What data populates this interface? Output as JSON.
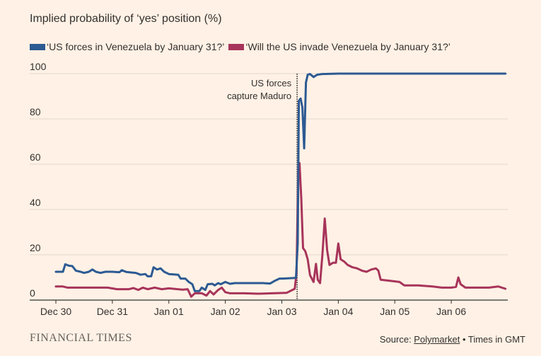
{
  "chart_data": {
    "type": "line",
    "title": "Implied probability of ‘yes’ position (%)",
    "ylim": [
      0,
      100
    ],
    "yticks": [
      0,
      20,
      40,
      60,
      80,
      100
    ],
    "xlim": [
      "2025-12-30T00:00",
      "2026-01-07T00:00"
    ],
    "xticks": [
      {
        "label": "Dec 30",
        "t": "2025-12-30T00:00"
      },
      {
        "label": "Dec 31",
        "t": "2025-12-31T00:00"
      },
      {
        "label": "Jan 01",
        "t": "2026-01-01T00:00"
      },
      {
        "label": "Jan 02",
        "t": "2026-01-02T00:00"
      },
      {
        "label": "Jan 03",
        "t": "2026-01-03T00:00"
      },
      {
        "label": "Jan 04",
        "t": "2026-01-04T00:00"
      },
      {
        "label": "Jan 05",
        "t": "2026-01-05T00:00"
      },
      {
        "label": "Jan 06",
        "t": "2026-01-06T00:00"
      }
    ],
    "grid": true,
    "legend_position": "top-left",
    "annotation": {
      "lines": [
        "US forces",
        "capture Maduro"
      ],
      "t": "2026-01-03T06:30"
    },
    "series": [
      {
        "name": "‘US forces in Venezuela by January 31?’",
        "color": "#2c5a93",
        "points": [
          [
            "2025-12-30T00:00",
            12.5
          ],
          [
            "2025-12-30T03:00",
            12.5
          ],
          [
            "2025-12-30T04:00",
            15.8
          ],
          [
            "2025-12-30T05:30",
            15.2
          ],
          [
            "2025-12-30T07:00",
            15
          ],
          [
            "2025-12-30T08:30",
            13
          ],
          [
            "2025-12-30T10:30",
            12.5
          ],
          [
            "2025-12-30T12:00",
            12
          ],
          [
            "2025-12-30T14:00",
            12.5
          ],
          [
            "2025-12-30T15:30",
            13.5
          ],
          [
            "2025-12-30T17:00",
            12.5
          ],
          [
            "2025-12-30T19:00",
            12
          ],
          [
            "2025-12-30T21:00",
            12.5
          ],
          [
            "2025-12-31T00:00",
            12.5
          ],
          [
            "2025-12-31T03:00",
            12.3
          ],
          [
            "2025-12-31T04:00",
            13.2
          ],
          [
            "2025-12-31T06:00",
            12.4
          ],
          [
            "2025-12-31T08:00",
            12.2
          ],
          [
            "2025-12-31T10:00",
            12
          ],
          [
            "2025-12-31T12:00",
            11.2
          ],
          [
            "2025-12-31T14:00",
            11.5
          ],
          [
            "2025-12-31T15:00",
            10.5
          ],
          [
            "2025-12-31T16:30",
            10.5
          ],
          [
            "2025-12-31T17:30",
            14.5
          ],
          [
            "2025-12-31T19:00",
            13.5
          ],
          [
            "2025-12-31T20:30",
            14
          ],
          [
            "2025-12-31T22:00",
            12.5
          ],
          [
            "2026-01-01T00:00",
            11.5
          ],
          [
            "2026-01-01T04:00",
            11.2
          ],
          [
            "2026-01-01T05:00",
            9.5
          ],
          [
            "2026-01-01T07:00",
            9.5
          ],
          [
            "2026-01-01T08:30",
            8
          ],
          [
            "2026-01-01T10:00",
            7
          ],
          [
            "2026-01-01T11:00",
            4
          ],
          [
            "2026-01-01T13:00",
            4
          ],
          [
            "2026-01-01T14:00",
            5.5
          ],
          [
            "2026-01-01T15:30",
            4.5
          ],
          [
            "2026-01-01T16:30",
            7
          ],
          [
            "2026-01-01T18:30",
            7.2
          ],
          [
            "2026-01-01T19:30",
            6.5
          ],
          [
            "2026-01-01T21:00",
            7.5
          ],
          [
            "2026-01-01T22:00",
            7
          ],
          [
            "2026-01-02T00:00",
            8
          ],
          [
            "2026-01-02T02:00",
            7.2
          ],
          [
            "2026-01-02T04:00",
            7.5
          ],
          [
            "2026-01-02T08:00",
            7.5
          ],
          [
            "2026-01-02T16:00",
            7.5
          ],
          [
            "2026-01-02T19:00",
            7.3
          ],
          [
            "2026-01-02T21:00",
            8.5
          ],
          [
            "2026-01-02T23:00",
            9.5
          ],
          [
            "2026-01-03T00:30",
            9.5
          ],
          [
            "2026-01-03T06:00",
            9.8
          ],
          [
            "2026-01-03T06:45",
            25
          ],
          [
            "2026-01-03T07:15",
            88
          ],
          [
            "2026-01-03T08:00",
            89
          ],
          [
            "2026-01-03T08:45",
            85
          ],
          [
            "2026-01-03T09:30",
            67
          ],
          [
            "2026-01-03T10:15",
            96
          ],
          [
            "2026-01-03T11:00",
            99.5
          ],
          [
            "2026-01-03T12:00",
            99.8
          ],
          [
            "2026-01-03T13:30",
            98.5
          ],
          [
            "2026-01-03T15:00",
            99.5
          ],
          [
            "2026-01-03T17:00",
            99.8
          ],
          [
            "2026-01-04T00:00",
            100
          ],
          [
            "2026-01-05T00:00",
            100
          ],
          [
            "2026-01-06T00:00",
            100
          ],
          [
            "2026-01-06T23:00",
            100
          ]
        ]
      },
      {
        "name": "‘Will the US invade Venezuela by January 31?’",
        "color": "#a7345a",
        "points": [
          [
            "2025-12-30T00:00",
            6
          ],
          [
            "2025-12-30T03:00",
            6
          ],
          [
            "2025-12-30T05:00",
            5.5
          ],
          [
            "2025-12-30T12:00",
            5.5
          ],
          [
            "2025-12-30T22:00",
            5.5
          ],
          [
            "2025-12-31T02:00",
            4.8
          ],
          [
            "2025-12-31T07:00",
            4.8
          ],
          [
            "2025-12-31T09:00",
            5.3
          ],
          [
            "2025-12-31T11:00",
            4.5
          ],
          [
            "2025-12-31T13:00",
            5.5
          ],
          [
            "2025-12-31T15:00",
            4.8
          ],
          [
            "2025-12-31T18:00",
            5.5
          ],
          [
            "2025-12-31T21:00",
            4.8
          ],
          [
            "2026-01-01T00:00",
            5.2
          ],
          [
            "2026-01-01T06:00",
            4.6
          ],
          [
            "2026-01-01T08:00",
            4.8
          ],
          [
            "2026-01-01T09:30",
            1.5
          ],
          [
            "2026-01-01T11:00",
            3
          ],
          [
            "2026-01-01T14:00",
            3
          ],
          [
            "2026-01-01T16:00",
            2
          ],
          [
            "2026-01-01T17:30",
            4
          ],
          [
            "2026-01-01T19:00",
            2.5
          ],
          [
            "2026-01-01T21:00",
            4.5
          ],
          [
            "2026-01-01T22:30",
            5.5
          ],
          [
            "2026-01-02T00:00",
            3.5
          ],
          [
            "2026-01-02T02:00",
            3
          ],
          [
            "2026-01-02T08:00",
            3
          ],
          [
            "2026-01-02T14:00",
            2.8
          ],
          [
            "2026-01-02T20:00",
            3
          ],
          [
            "2026-01-03T02:00",
            3.2
          ],
          [
            "2026-01-03T05:30",
            5
          ],
          [
            "2026-01-03T06:15",
            12
          ],
          [
            "2026-01-03T07:00",
            58
          ],
          [
            "2026-01-03T07:30",
            60.5
          ],
          [
            "2026-01-03T08:15",
            45
          ],
          [
            "2026-01-03T09:00",
            23
          ],
          [
            "2026-01-03T10:00",
            21.5
          ],
          [
            "2026-01-03T11:00",
            18
          ],
          [
            "2026-01-03T12:00",
            11
          ],
          [
            "2026-01-03T13:30",
            8
          ],
          [
            "2026-01-03T14:30",
            16
          ],
          [
            "2026-01-03T15:15",
            9
          ],
          [
            "2026-01-03T16:15",
            7.5
          ],
          [
            "2026-01-03T17:15",
            20
          ],
          [
            "2026-01-03T18:15",
            36
          ],
          [
            "2026-01-03T19:15",
            22
          ],
          [
            "2026-01-03T20:15",
            15.5
          ],
          [
            "2026-01-03T21:45",
            16.5
          ],
          [
            "2026-01-03T23:00",
            16.5
          ],
          [
            "2026-01-04T00:00",
            25
          ],
          [
            "2026-01-04T01:00",
            18
          ],
          [
            "2026-01-04T02:30",
            17
          ],
          [
            "2026-01-04T04:00",
            15.5
          ],
          [
            "2026-01-04T06:00",
            14.5
          ],
          [
            "2026-01-04T08:00",
            14
          ],
          [
            "2026-01-04T10:00",
            13
          ],
          [
            "2026-01-04T12:00",
            12.5
          ],
          [
            "2026-01-04T14:00",
            13.5
          ],
          [
            "2026-01-04T16:00",
            14
          ],
          [
            "2026-01-04T17:00",
            13
          ],
          [
            "2026-01-04T18:00",
            9
          ],
          [
            "2026-01-04T22:00",
            8.5
          ],
          [
            "2026-01-05T02:00",
            8
          ],
          [
            "2026-01-05T04:00",
            6.5
          ],
          [
            "2026-01-05T10:00",
            6.5
          ],
          [
            "2026-01-05T16:00",
            6
          ],
          [
            "2026-01-05T20:00",
            5.5
          ],
          [
            "2026-01-06T00:00",
            5.5
          ],
          [
            "2026-01-06T02:00",
            5.8
          ],
          [
            "2026-01-06T03:00",
            10
          ],
          [
            "2026-01-06T04:00",
            7
          ],
          [
            "2026-01-06T06:00",
            5.5
          ],
          [
            "2026-01-06T12:00",
            5.5
          ],
          [
            "2026-01-06T16:00",
            5.5
          ],
          [
            "2026-01-06T20:00",
            6
          ],
          [
            "2026-01-06T23:00",
            5
          ]
        ]
      }
    ]
  },
  "footer": {
    "logo_text": "FINANCIAL TIMES",
    "source_prefix": "Source: ",
    "source_link": "Polymarket",
    "source_suffix": " • Times in GMT"
  }
}
